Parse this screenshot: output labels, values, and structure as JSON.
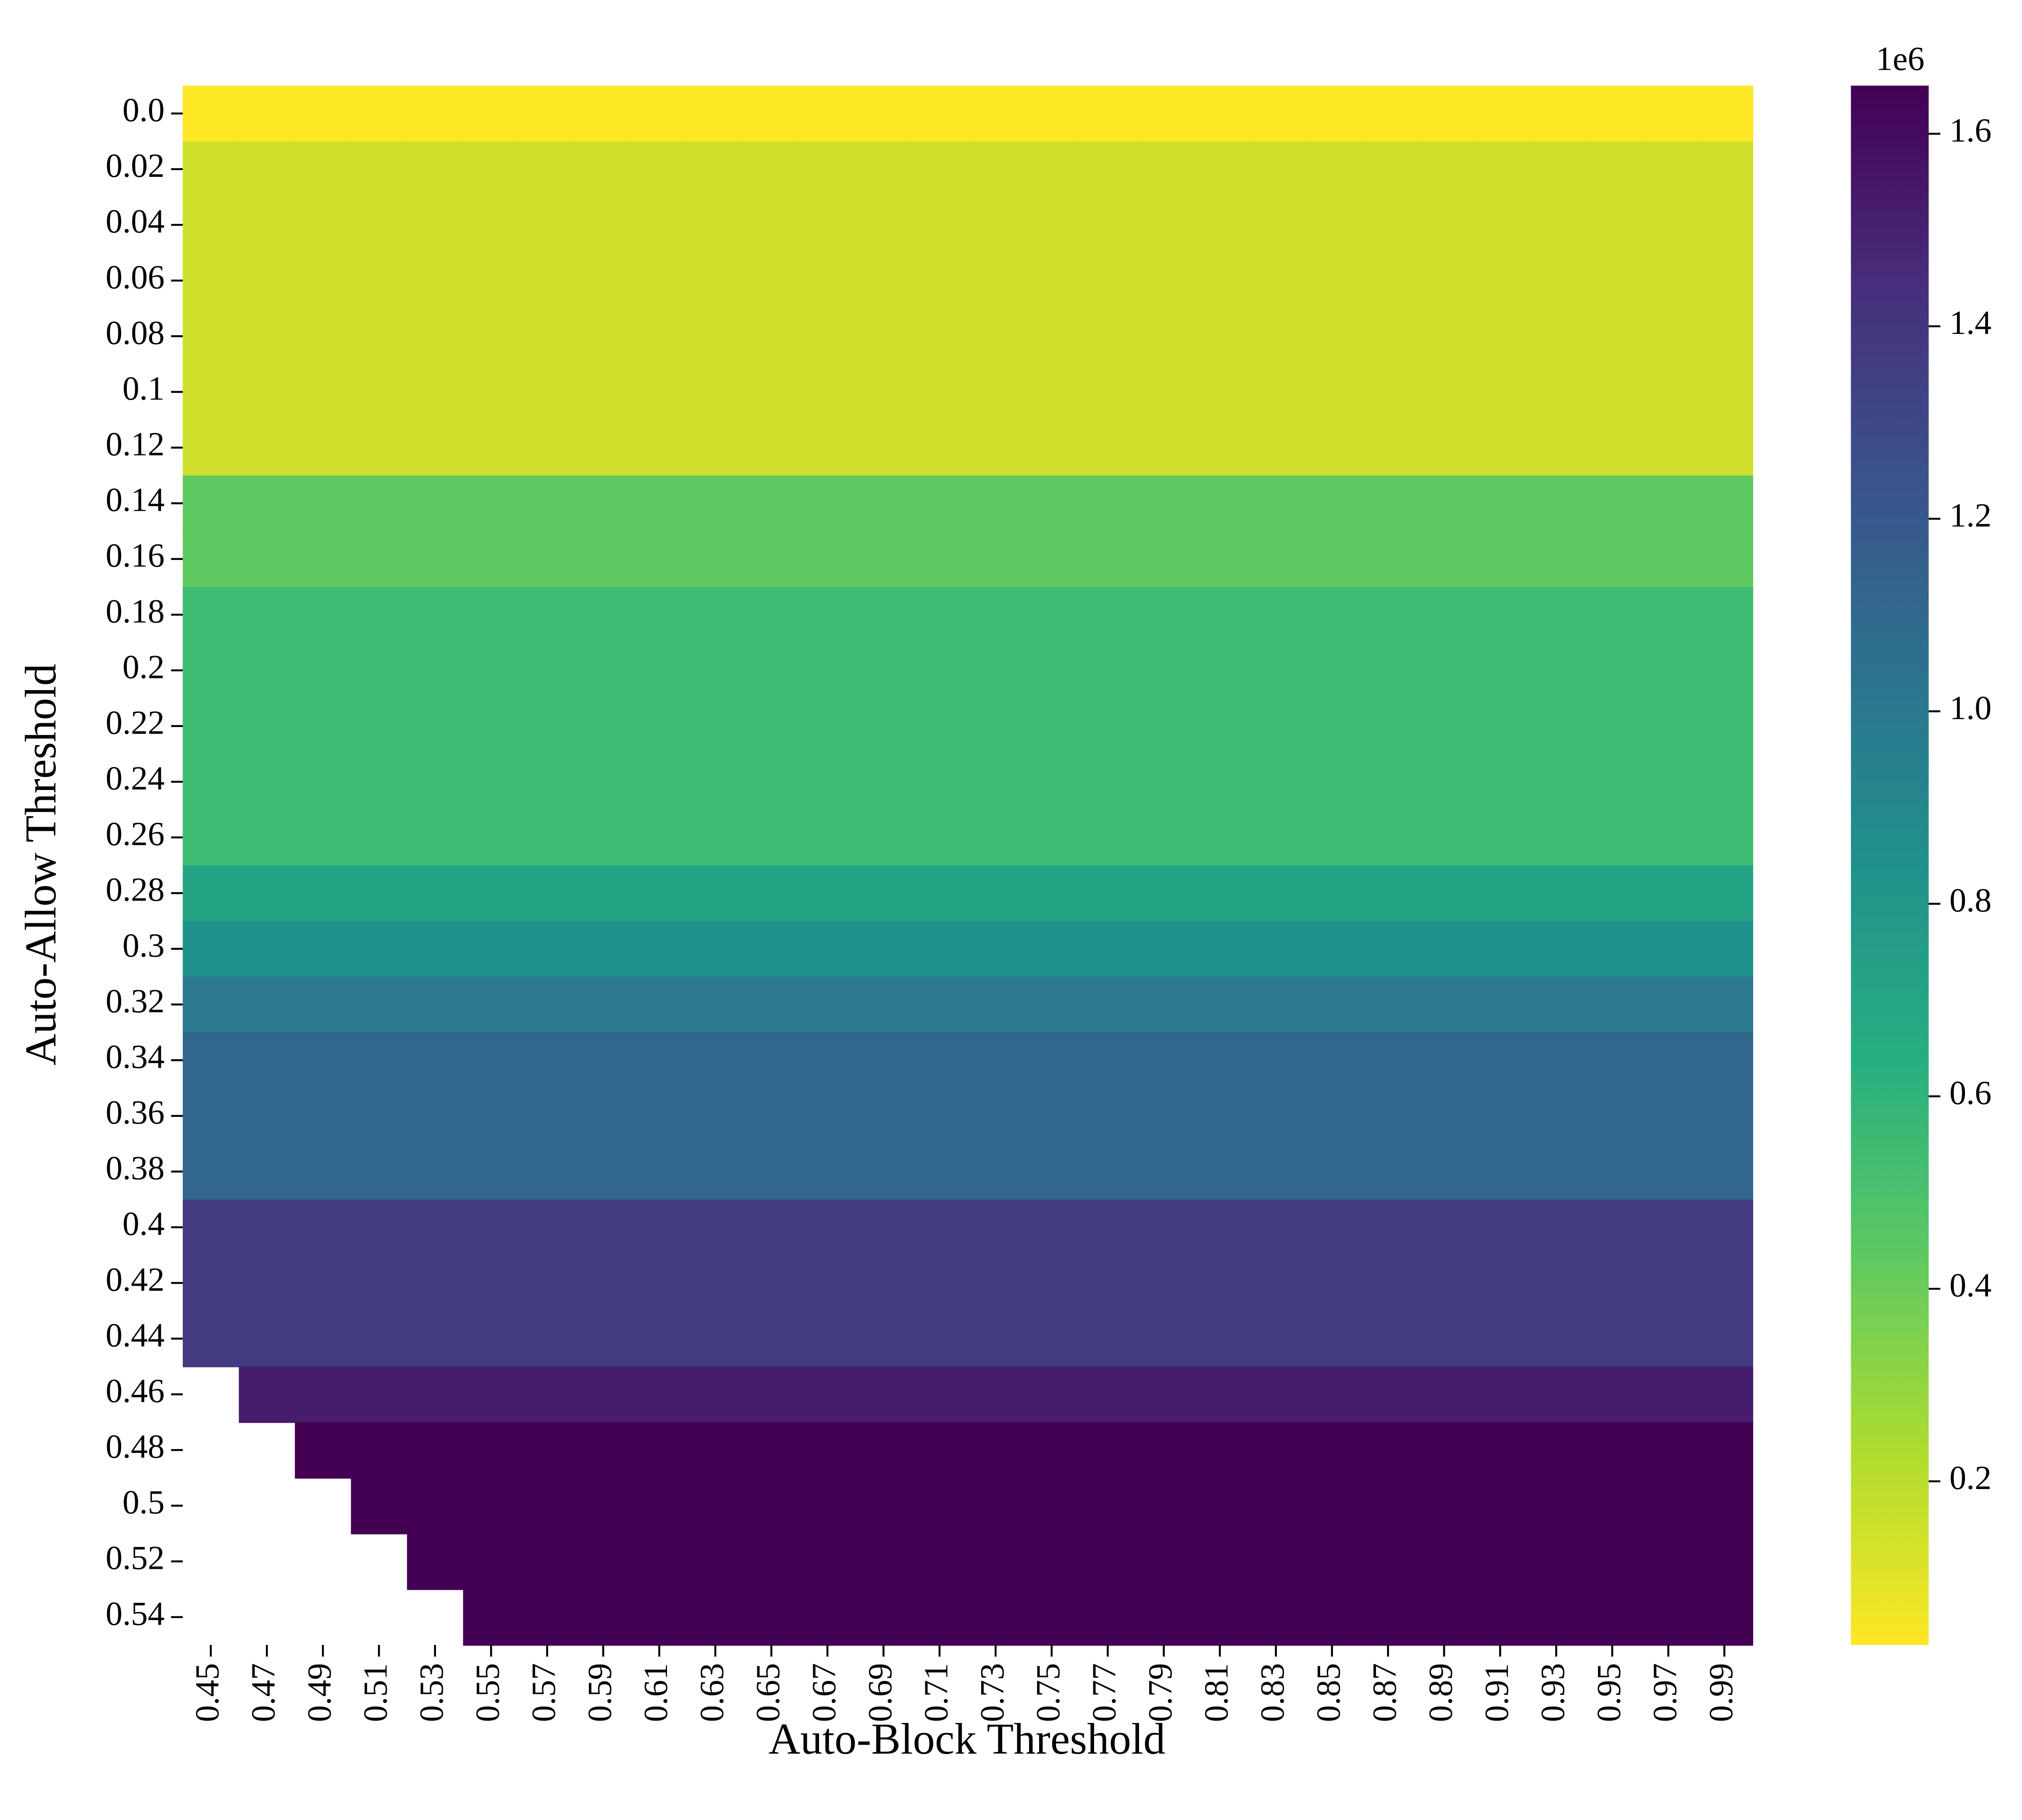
{
  "chart_data": {
    "type": "heatmap",
    "x_label": "Auto-Block Threshold",
    "y_label": "Auto-Allow Threshold",
    "x_categories": [
      "0.45",
      "0.47",
      "0.49",
      "0.51",
      "0.53",
      "0.55",
      "0.57",
      "0.59",
      "0.61",
      "0.63",
      "0.65",
      "0.67",
      "0.69",
      "0.71",
      "0.73",
      "0.75",
      "0.77",
      "0.79",
      "0.81",
      "0.83",
      "0.85",
      "0.87",
      "0.89",
      "0.91",
      "0.93",
      "0.95",
      "0.97",
      "0.99"
    ],
    "y_categories": [
      "0.0",
      "0.02",
      "0.04",
      "0.06",
      "0.08",
      "0.1",
      "0.12",
      "0.14",
      "0.16",
      "0.18",
      "0.2",
      "0.22",
      "0.24",
      "0.26",
      "0.28",
      "0.3",
      "0.32",
      "0.34",
      "0.36",
      "0.38",
      "0.4",
      "0.42",
      "0.44",
      "0.46",
      "0.48",
      "0.5",
      "0.52",
      "0.54"
    ],
    "values": [
      [
        0.03,
        0.03,
        0.03,
        0.03,
        0.03,
        0.03,
        0.03,
        0.03,
        0.03,
        0.03,
        0.03,
        0.03,
        0.03,
        0.03,
        0.03,
        0.03,
        0.03,
        0.03,
        0.03,
        0.03,
        0.03,
        0.03,
        0.03,
        0.03,
        0.03,
        0.03,
        0.03,
        0.03
      ],
      [
        0.15,
        0.15,
        0.15,
        0.15,
        0.15,
        0.15,
        0.15,
        0.15,
        0.15,
        0.15,
        0.15,
        0.15,
        0.15,
        0.15,
        0.15,
        0.15,
        0.15,
        0.15,
        0.15,
        0.15,
        0.15,
        0.15,
        0.15,
        0.15,
        0.15,
        0.15,
        0.15,
        0.15
      ],
      [
        0.15,
        0.15,
        0.15,
        0.15,
        0.15,
        0.15,
        0.15,
        0.15,
        0.15,
        0.15,
        0.15,
        0.15,
        0.15,
        0.15,
        0.15,
        0.15,
        0.15,
        0.15,
        0.15,
        0.15,
        0.15,
        0.15,
        0.15,
        0.15,
        0.15,
        0.15,
        0.15,
        0.15
      ],
      [
        0.15,
        0.15,
        0.15,
        0.15,
        0.15,
        0.15,
        0.15,
        0.15,
        0.15,
        0.15,
        0.15,
        0.15,
        0.15,
        0.15,
        0.15,
        0.15,
        0.15,
        0.15,
        0.15,
        0.15,
        0.15,
        0.15,
        0.15,
        0.15,
        0.15,
        0.15,
        0.15,
        0.15
      ],
      [
        0.15,
        0.15,
        0.15,
        0.15,
        0.15,
        0.15,
        0.15,
        0.15,
        0.15,
        0.15,
        0.15,
        0.15,
        0.15,
        0.15,
        0.15,
        0.15,
        0.15,
        0.15,
        0.15,
        0.15,
        0.15,
        0.15,
        0.15,
        0.15,
        0.15,
        0.15,
        0.15,
        0.15
      ],
      [
        0.15,
        0.15,
        0.15,
        0.15,
        0.15,
        0.15,
        0.15,
        0.15,
        0.15,
        0.15,
        0.15,
        0.15,
        0.15,
        0.15,
        0.15,
        0.15,
        0.15,
        0.15,
        0.15,
        0.15,
        0.15,
        0.15,
        0.15,
        0.15,
        0.15,
        0.15,
        0.15,
        0.15
      ],
      [
        0.15,
        0.15,
        0.15,
        0.15,
        0.15,
        0.15,
        0.15,
        0.15,
        0.15,
        0.15,
        0.15,
        0.15,
        0.15,
        0.15,
        0.15,
        0.15,
        0.15,
        0.15,
        0.15,
        0.15,
        0.15,
        0.15,
        0.15,
        0.15,
        0.15,
        0.15,
        0.15,
        0.15
      ],
      [
        0.43,
        0.43,
        0.43,
        0.43,
        0.43,
        0.43,
        0.43,
        0.43,
        0.43,
        0.43,
        0.43,
        0.43,
        0.43,
        0.43,
        0.43,
        0.43,
        0.43,
        0.43,
        0.43,
        0.43,
        0.43,
        0.43,
        0.43,
        0.43,
        0.43,
        0.43,
        0.43,
        0.43
      ],
      [
        0.43,
        0.43,
        0.43,
        0.43,
        0.43,
        0.43,
        0.43,
        0.43,
        0.43,
        0.43,
        0.43,
        0.43,
        0.43,
        0.43,
        0.43,
        0.43,
        0.43,
        0.43,
        0.43,
        0.43,
        0.43,
        0.43,
        0.43,
        0.43,
        0.43,
        0.43,
        0.43,
        0.43
      ],
      [
        0.55,
        0.55,
        0.55,
        0.55,
        0.55,
        0.55,
        0.55,
        0.55,
        0.55,
        0.55,
        0.55,
        0.55,
        0.55,
        0.55,
        0.55,
        0.55,
        0.55,
        0.55,
        0.55,
        0.55,
        0.55,
        0.55,
        0.55,
        0.55,
        0.55,
        0.55,
        0.55,
        0.55
      ],
      [
        0.55,
        0.55,
        0.55,
        0.55,
        0.55,
        0.55,
        0.55,
        0.55,
        0.55,
        0.55,
        0.55,
        0.55,
        0.55,
        0.55,
        0.55,
        0.55,
        0.55,
        0.55,
        0.55,
        0.55,
        0.55,
        0.55,
        0.55,
        0.55,
        0.55,
        0.55,
        0.55,
        0.55
      ],
      [
        0.55,
        0.55,
        0.55,
        0.55,
        0.55,
        0.55,
        0.55,
        0.55,
        0.55,
        0.55,
        0.55,
        0.55,
        0.55,
        0.55,
        0.55,
        0.55,
        0.55,
        0.55,
        0.55,
        0.55,
        0.55,
        0.55,
        0.55,
        0.55,
        0.55,
        0.55,
        0.55,
        0.55
      ],
      [
        0.55,
        0.55,
        0.55,
        0.55,
        0.55,
        0.55,
        0.55,
        0.55,
        0.55,
        0.55,
        0.55,
        0.55,
        0.55,
        0.55,
        0.55,
        0.55,
        0.55,
        0.55,
        0.55,
        0.55,
        0.55,
        0.55,
        0.55,
        0.55,
        0.55,
        0.55,
        0.55,
        0.55
      ],
      [
        0.55,
        0.55,
        0.55,
        0.55,
        0.55,
        0.55,
        0.55,
        0.55,
        0.55,
        0.55,
        0.55,
        0.55,
        0.55,
        0.55,
        0.55,
        0.55,
        0.55,
        0.55,
        0.55,
        0.55,
        0.55,
        0.55,
        0.55,
        0.55,
        0.55,
        0.55,
        0.55,
        0.55
      ],
      [
        0.71,
        0.71,
        0.71,
        0.71,
        0.71,
        0.71,
        0.71,
        0.71,
        0.71,
        0.71,
        0.71,
        0.71,
        0.71,
        0.71,
        0.71,
        0.71,
        0.71,
        0.71,
        0.71,
        0.71,
        0.71,
        0.71,
        0.71,
        0.71,
        0.71,
        0.71,
        0.71,
        0.71
      ],
      [
        0.84,
        0.84,
        0.84,
        0.84,
        0.84,
        0.84,
        0.84,
        0.84,
        0.84,
        0.84,
        0.84,
        0.84,
        0.84,
        0.84,
        0.84,
        0.84,
        0.84,
        0.84,
        0.84,
        0.84,
        0.84,
        0.84,
        0.84,
        0.84,
        0.84,
        0.84,
        0.84,
        0.84
      ],
      [
        1.0,
        1.0,
        1.0,
        1.0,
        1.0,
        1.0,
        1.0,
        1.0,
        1.0,
        1.0,
        1.0,
        1.0,
        1.0,
        1.0,
        1.0,
        1.0,
        1.0,
        1.0,
        1.0,
        1.0,
        1.0,
        1.0,
        1.0,
        1.0,
        1.0,
        1.0,
        1.0,
        1.0
      ],
      [
        1.11,
        1.11,
        1.11,
        1.11,
        1.11,
        1.11,
        1.11,
        1.11,
        1.11,
        1.11,
        1.11,
        1.11,
        1.11,
        1.11,
        1.11,
        1.11,
        1.11,
        1.11,
        1.11,
        1.11,
        1.11,
        1.11,
        1.11,
        1.11,
        1.11,
        1.11,
        1.11,
        1.11
      ],
      [
        1.11,
        1.11,
        1.11,
        1.11,
        1.11,
        1.11,
        1.11,
        1.11,
        1.11,
        1.11,
        1.11,
        1.11,
        1.11,
        1.11,
        1.11,
        1.11,
        1.11,
        1.11,
        1.11,
        1.11,
        1.11,
        1.11,
        1.11,
        1.11,
        1.11,
        1.11,
        1.11,
        1.11
      ],
      [
        1.11,
        1.11,
        1.11,
        1.11,
        1.11,
        1.11,
        1.11,
        1.11,
        1.11,
        1.11,
        1.11,
        1.11,
        1.11,
        1.11,
        1.11,
        1.11,
        1.11,
        1.11,
        1.11,
        1.11,
        1.11,
        1.11,
        1.11,
        1.11,
        1.11,
        1.11,
        1.11,
        1.11
      ],
      [
        1.37,
        1.37,
        1.37,
        1.37,
        1.37,
        1.37,
        1.37,
        1.37,
        1.37,
        1.37,
        1.37,
        1.37,
        1.37,
        1.37,
        1.37,
        1.37,
        1.37,
        1.37,
        1.37,
        1.37,
        1.37,
        1.37,
        1.37,
        1.37,
        1.37,
        1.37,
        1.37,
        1.37
      ],
      [
        1.37,
        1.37,
        1.37,
        1.37,
        1.37,
        1.37,
        1.37,
        1.37,
        1.37,
        1.37,
        1.37,
        1.37,
        1.37,
        1.37,
        1.37,
        1.37,
        1.37,
        1.37,
        1.37,
        1.37,
        1.37,
        1.37,
        1.37,
        1.37,
        1.37,
        1.37,
        1.37,
        1.37
      ],
      [
        1.37,
        1.37,
        1.37,
        1.37,
        1.37,
        1.37,
        1.37,
        1.37,
        1.37,
        1.37,
        1.37,
        1.37,
        1.37,
        1.37,
        1.37,
        1.37,
        1.37,
        1.37,
        1.37,
        1.37,
        1.37,
        1.37,
        1.37,
        1.37,
        1.37,
        1.37,
        1.37,
        1.37
      ],
      [
        null,
        1.52,
        1.52,
        1.52,
        1.52,
        1.52,
        1.52,
        1.52,
        1.52,
        1.52,
        1.52,
        1.52,
        1.52,
        1.52,
        1.52,
        1.52,
        1.52,
        1.52,
        1.52,
        1.52,
        1.52,
        1.52,
        1.52,
        1.52,
        1.52,
        1.52,
        1.52,
        1.52
      ],
      [
        null,
        null,
        1.65,
        1.65,
        1.65,
        1.65,
        1.65,
        1.65,
        1.65,
        1.65,
        1.65,
        1.65,
        1.65,
        1.65,
        1.65,
        1.65,
        1.65,
        1.65,
        1.65,
        1.65,
        1.65,
        1.65,
        1.65,
        1.65,
        1.65,
        1.65,
        1.65,
        1.65
      ],
      [
        null,
        null,
        null,
        1.65,
        1.65,
        1.65,
        1.65,
        1.65,
        1.65,
        1.65,
        1.65,
        1.65,
        1.65,
        1.65,
        1.65,
        1.65,
        1.65,
        1.65,
        1.65,
        1.65,
        1.65,
        1.65,
        1.65,
        1.65,
        1.65,
        1.65,
        1.65,
        1.65
      ],
      [
        null,
        null,
        null,
        null,
        1.65,
        1.65,
        1.65,
        1.65,
        1.65,
        1.65,
        1.65,
        1.65,
        1.65,
        1.65,
        1.65,
        1.65,
        1.65,
        1.65,
        1.65,
        1.65,
        1.65,
        1.65,
        1.65,
        1.65,
        1.65,
        1.65,
        1.65,
        1.65
      ],
      [
        null,
        null,
        null,
        null,
        null,
        1.65,
        1.65,
        1.65,
        1.65,
        1.65,
        1.65,
        1.65,
        1.65,
        1.65,
        1.65,
        1.65,
        1.65,
        1.65,
        1.65,
        1.65,
        1.65,
        1.65,
        1.65,
        1.65,
        1.65,
        1.65,
        1.65,
        1.65
      ]
    ],
    "colormap": [
      "#fde725",
      "#addc30",
      "#5ec962",
      "#28ae80",
      "#21918c",
      "#2c728e",
      "#3b528b",
      "#472d7b",
      "#440154"
    ],
    "clim": [
      0.03,
      1.65
    ],
    "cticks": [
      0.2,
      0.4,
      0.6,
      0.8,
      {
        "value": 1,
        "label": "1.0"
      },
      1.2,
      1.4,
      1.6
    ],
    "colorbar_offset": "1e6"
  }
}
